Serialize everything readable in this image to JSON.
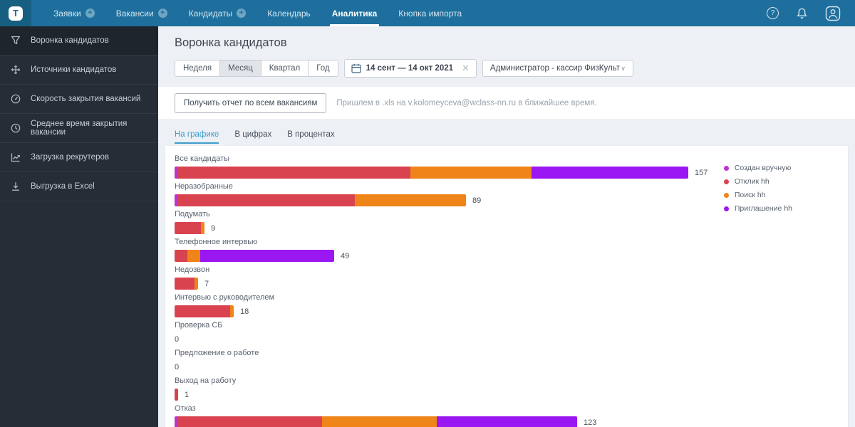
{
  "topnav": {
    "items": [
      {
        "label": "Заявки",
        "plus": true,
        "active": false
      },
      {
        "label": "Вакансии",
        "plus": true,
        "active": false
      },
      {
        "label": "Кандидаты",
        "plus": true,
        "active": false
      },
      {
        "label": "Календарь",
        "plus": false,
        "active": false
      },
      {
        "label": "Аналитика",
        "plus": false,
        "active": true
      },
      {
        "label": "Кнопка импорта",
        "plus": false,
        "active": false
      }
    ],
    "icons": [
      "help-icon",
      "bell-icon",
      "avatar-icon"
    ]
  },
  "sidebar": {
    "items": [
      {
        "label": "Воронка кандидатов",
        "icon": "funnel-icon",
        "active": true
      },
      {
        "label": "Источники кандидатов",
        "icon": "move-arrows-icon",
        "active": false
      },
      {
        "label": "Скорость закрытия вакансий",
        "icon": "speedometer-icon",
        "active": false
      },
      {
        "label": "Среднее время закрытия вакансии",
        "icon": "clock-icon",
        "active": false
      },
      {
        "label": "Загрузка рекрутеров",
        "icon": "line-chart-icon",
        "active": false
      },
      {
        "label": "Выгрузка в Excel",
        "icon": "download-icon",
        "active": false
      }
    ]
  },
  "header": {
    "title": "Воронка кандидатов",
    "period_options": [
      "Неделя",
      "Месяц",
      "Квартал",
      "Год"
    ],
    "period_selected": "Месяц",
    "date_range": "14 сент — 14 окт 2021",
    "vacancy_filter": "Администратор - кассир ФизКульт"
  },
  "report": {
    "button_label": "Получить отчет по всем вакансиям",
    "note": "Пришлем в .xls на v.kolomeyceva@wclass-nn.ru в ближайшее время."
  },
  "tabs": [
    {
      "label": "На графике",
      "active": true
    },
    {
      "label": "В цифрах",
      "active": false
    },
    {
      "label": "В процентах",
      "active": false
    }
  ],
  "colors": {
    "topbar": "#1e6f9d",
    "sidebar": "#272d37",
    "accent_blue": "#3f9ccc",
    "manual": "#bb34d1",
    "otklik": "#d9434f",
    "poisk": "#ef8419",
    "invite": "#9a17f2"
  },
  "chart_data": {
    "type": "bar",
    "orientation": "horizontal",
    "stacked": true,
    "grid": false,
    "legend_position": "top-right",
    "xmax": 157,
    "series_names": [
      "Создан вручную",
      "Отклик hh",
      "Поиск hh",
      "Приглашение hh"
    ],
    "series_colors": {
      "Создан вручную": "#bb34d1",
      "Отклик hh": "#d9434f",
      "Поиск hh": "#ef8419",
      "Приглашение hh": "#9a17f2"
    },
    "categories": [
      "Все кандидаты",
      "Неразобранные",
      "Подумать",
      "Телефонное интервью",
      "Недозвон",
      "Интервью с руководителем",
      "Проверка СБ",
      "Предложение о работе",
      "Выход на работу",
      "Отказ"
    ],
    "totals": [
      157,
      89,
      9,
      49,
      7,
      18,
      0,
      0,
      1,
      123
    ],
    "rows": [
      {
        "label": "Все кандидаты",
        "total": 157,
        "segments": [
          {
            "series": "Создан вручную",
            "value": 1
          },
          {
            "series": "Отклик hh",
            "value": 71
          },
          {
            "series": "Поиск hh",
            "value": 37
          },
          {
            "series": "Приглашение hh",
            "value": 48
          }
        ]
      },
      {
        "label": "Неразобранные",
        "total": 89,
        "segments": [
          {
            "series": "Создан вручную",
            "value": 1
          },
          {
            "series": "Отклик hh",
            "value": 54
          },
          {
            "series": "Поиск hh",
            "value": 34
          }
        ]
      },
      {
        "label": "Подумать",
        "total": 9,
        "segments": [
          {
            "series": "Отклик hh",
            "value": 8
          },
          {
            "series": "Поиск hh",
            "value": 1
          }
        ]
      },
      {
        "label": "Телефонное интервью",
        "total": 49,
        "segments": [
          {
            "series": "Отклик hh",
            "value": 4
          },
          {
            "series": "Поиск hh",
            "value": 4
          },
          {
            "series": "Приглашение hh",
            "value": 41
          }
        ]
      },
      {
        "label": "Недозвон",
        "total": 7,
        "segments": [
          {
            "series": "Отклик hh",
            "value": 6
          },
          {
            "series": "Поиск hh",
            "value": 1
          }
        ]
      },
      {
        "label": "Интервью с руководителем",
        "total": 18,
        "segments": [
          {
            "series": "Отклик hh",
            "value": 17
          },
          {
            "series": "Поиск hh",
            "value": 1
          }
        ]
      },
      {
        "label": "Проверка СБ",
        "total": 0,
        "segments": []
      },
      {
        "label": "Предложение о работе",
        "total": 0,
        "segments": []
      },
      {
        "label": "Выход на работу",
        "total": 1,
        "segments": [
          {
            "series": "Отклик hh",
            "value": 1
          }
        ]
      },
      {
        "label": "Отказ",
        "total": 123,
        "segments": [
          {
            "series": "Создан вручную",
            "value": 1
          },
          {
            "series": "Отклик hh",
            "value": 44
          },
          {
            "series": "Поиск hh",
            "value": 35
          },
          {
            "series": "Приглашение hh",
            "value": 43
          }
        ]
      }
    ]
  }
}
